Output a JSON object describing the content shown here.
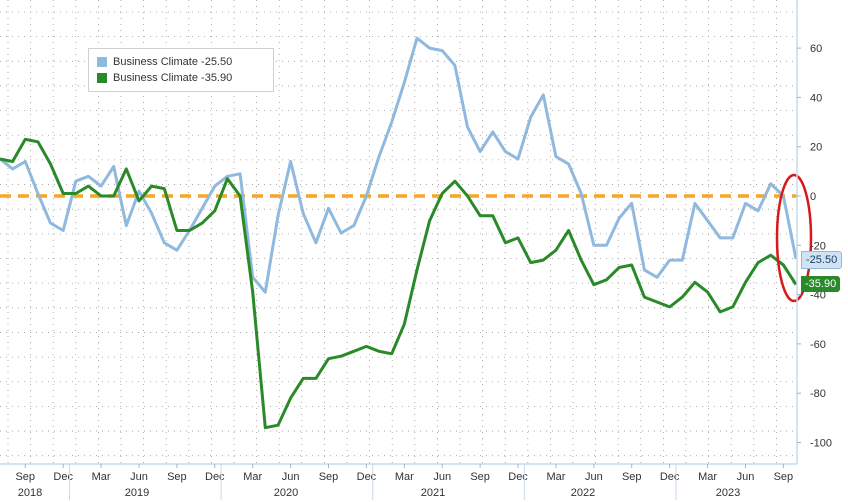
{
  "chart_data": {
    "type": "line",
    "title": "",
    "xlabel": "",
    "ylabel": "",
    "ylim": [
      -105,
      70
    ],
    "yticks": [
      60,
      40,
      20,
      0,
      -20,
      -40,
      -60,
      -80,
      -100
    ],
    "grid": true,
    "legend_position": "top-left",
    "reference_line": {
      "y": 0,
      "color": "#f5a623",
      "style": "dashed"
    },
    "highlight": {
      "shape": "ellipse",
      "color": "#d7191c",
      "around": "latest points (Oct 2023)"
    },
    "x_month_labels": [
      "Sep",
      "Dec",
      "Mar",
      "Jun",
      "Sep",
      "Dec",
      "Mar",
      "Jun",
      "Sep",
      "Dec",
      "Mar",
      "Jun",
      "Sep",
      "Dec",
      "Mar",
      "Jun",
      "Sep",
      "Dec",
      "Mar",
      "Jun",
      "Sep"
    ],
    "x_year_labels": [
      "2018",
      "2019",
      "2020",
      "2021",
      "2022",
      "2023"
    ],
    "x": [
      "2018-07",
      "2018-08",
      "2018-09",
      "2018-10",
      "2018-11",
      "2018-12",
      "2019-01",
      "2019-02",
      "2019-03",
      "2019-04",
      "2019-05",
      "2019-06",
      "2019-07",
      "2019-08",
      "2019-09",
      "2019-10",
      "2019-11",
      "2019-12",
      "2020-01",
      "2020-02",
      "2020-03",
      "2020-04",
      "2020-05",
      "2020-06",
      "2020-07",
      "2020-08",
      "2020-09",
      "2020-10",
      "2020-11",
      "2020-12",
      "2021-01",
      "2021-02",
      "2021-03",
      "2021-04",
      "2021-05",
      "2021-06",
      "2021-07",
      "2021-08",
      "2021-09",
      "2021-10",
      "2021-11",
      "2021-12",
      "2022-01",
      "2022-02",
      "2022-03",
      "2022-04",
      "2022-05",
      "2022-06",
      "2022-07",
      "2022-08",
      "2022-09",
      "2022-10",
      "2022-11",
      "2022-12",
      "2023-01",
      "2023-02",
      "2023-03",
      "2023-04",
      "2023-05",
      "2023-06",
      "2023-07",
      "2023-08",
      "2023-09",
      "2023-10"
    ],
    "series": [
      {
        "name": "Business Climate -25.50",
        "color": "#8fb9de",
        "end_label": "-25.50",
        "values": [
          15,
          11,
          14,
          1,
          -11,
          -14,
          6,
          8,
          4,
          12,
          -12,
          2,
          -7,
          -19,
          -22,
          -14,
          -5,
          4,
          8,
          9,
          -33,
          -39,
          -8,
          14,
          -7,
          -19,
          -5,
          -15,
          -12,
          0,
          16,
          30,
          46,
          64,
          60,
          59,
          53,
          28,
          18,
          26,
          18,
          15,
          32,
          41,
          16,
          13,
          1,
          -20,
          -20,
          -9,
          -3,
          -30,
          -33,
          -26,
          -26,
          -3,
          -10,
          -17,
          -17,
          -3,
          -6,
          5,
          0,
          -25.5
        ]
      },
      {
        "name": "Business Climate -35.90",
        "color": "#2a8a2a",
        "end_label": "-35.90",
        "values": [
          15,
          14,
          23,
          22,
          13,
          1,
          1,
          4,
          0,
          0,
          11,
          -2,
          4,
          3,
          -14,
          -14,
          -11,
          -6,
          7,
          0,
          -39,
          -94,
          -93,
          -82,
          -74,
          -74,
          -66,
          -65,
          -63,
          -61,
          -63,
          -64,
          -52,
          -30,
          -10,
          1,
          6,
          0,
          -8,
          -8,
          -19,
          -17,
          -27,
          -26,
          -22,
          -14,
          -26,
          -36,
          -34,
          -29,
          -28,
          -41,
          -43,
          -45,
          -41,
          -35,
          -39,
          -47,
          -45,
          -35,
          -27,
          -24,
          -28,
          -35.9
        ]
      }
    ]
  }
}
